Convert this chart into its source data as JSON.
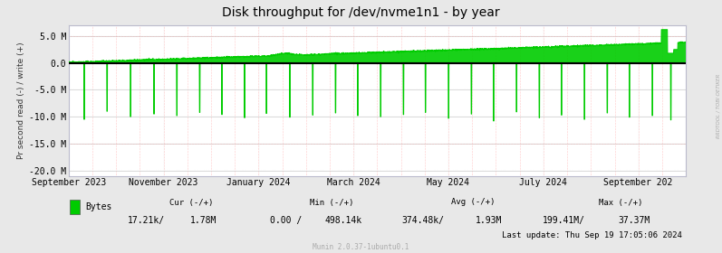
{
  "title": "Disk throughput for /dev/nvme1n1 - by year",
  "ylabel": "Pr second read (-) / write (+)",
  "background_color": "#E8E8E8",
  "plot_bg_color": "#FFFFFF",
  "grid_color": "#CCCCCC",
  "grid_color_minor": "#E0E0E0",
  "line_color": "#00CC00",
  "zero_line_color": "#000000",
  "ylim": [
    -21000000,
    7000000
  ],
  "yticks": [
    -20000000,
    -15000000,
    -10000000,
    -5000000,
    0,
    5000000
  ],
  "ytick_labels": [
    "-20.0 M",
    "-15.0 M",
    "-10.0 M",
    "-5.0 M",
    "0.0",
    "5.0 M"
  ],
  "red_dashed_color": "#FF9999",
  "legend_label": "Bytes",
  "cur_label": "Cur (-/+)",
  "min_label": "Min (-/+)",
  "avg_label": "Avg (-/+)",
  "max_label": "Max (-/+)",
  "cur_values": "17.21k/",
  "cur_values2": "1.78M",
  "min_values": "0.00 /",
  "min_values2": "498.14k",
  "avg_values": "374.48k/",
  "avg_values2": "1.93M",
  "max_values": "199.41M/",
  "max_values2": "37.37M",
  "last_update": "Last update: Thu Sep 19 17:05:06 2024",
  "munin_label": "Munin 2.0.37-1ubuntu0.1",
  "side_label": "RRDTOOL / TOBI OETIKER",
  "xaxis_labels": [
    "September 2023",
    "November 2023",
    "January 2024",
    "March 2024",
    "May 2024",
    "July 2024",
    "September 202"
  ],
  "xtick_positions": [
    0.0,
    0.154,
    0.308,
    0.462,
    0.615,
    0.769,
    0.923
  ],
  "title_fontsize": 10,
  "axis_fontsize": 7,
  "tick_fontsize": 7,
  "spike_positions_norm": [
    0.025,
    0.062,
    0.1,
    0.138,
    0.175,
    0.212,
    0.248,
    0.285,
    0.32,
    0.358,
    0.395,
    0.432,
    0.468,
    0.505,
    0.542,
    0.578,
    0.615,
    0.652,
    0.688,
    0.725,
    0.762,
    0.798,
    0.835,
    0.872,
    0.908,
    0.945,
    0.975
  ],
  "spike_depths": [
    10500000,
    9000000,
    10000000,
    9500000,
    9800000,
    9200000,
    9600000,
    10200000,
    9400000,
    10100000,
    9700000,
    9300000,
    9800000,
    10000000,
    9600000,
    9200000,
    10300000,
    9500000,
    10800000,
    9100000,
    10200000,
    9700000,
    10500000,
    9300000,
    10100000,
    9800000,
    10600000
  ]
}
